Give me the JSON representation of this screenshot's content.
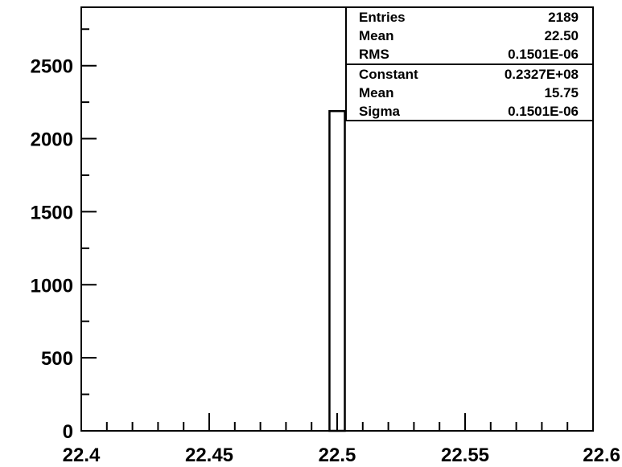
{
  "chart_data": {
    "type": "bar",
    "title": "",
    "xlabel": "",
    "ylabel": "",
    "xlim": [
      22.4,
      22.6
    ],
    "ylim": [
      0,
      2900
    ],
    "grid": false,
    "series": [
      {
        "bin_low": 22.497,
        "bin_high": 22.503,
        "value": 2189
      }
    ],
    "x_ticks": [
      {
        "value": 22.4,
        "label": "22.4"
      },
      {
        "value": 22.45,
        "label": "22.45"
      },
      {
        "value": 22.5,
        "label": "22.5"
      },
      {
        "value": 22.55,
        "label": "22.55"
      },
      {
        "value": 22.6,
        "label": "22.6"
      }
    ],
    "y_ticks": [
      {
        "value": 0,
        "label": "0"
      },
      {
        "value": 500,
        "label": "500"
      },
      {
        "value": 1000,
        "label": "1000"
      },
      {
        "value": 1500,
        "label": "1500"
      },
      {
        "value": 2000,
        "label": "2000"
      },
      {
        "value": 2500,
        "label": "2500"
      }
    ],
    "x_minor_step": 0.01,
    "y_minor_step": 250,
    "stats_box": {
      "position": "top-right",
      "sections": [
        [
          {
            "label": "Entries",
            "value": "2189"
          },
          {
            "label": "Mean",
            "value": "22.50"
          },
          {
            "label": "RMS",
            "value": "0.1501E-06"
          }
        ],
        [
          {
            "label": "Constant",
            "value": "0.2327E+08"
          },
          {
            "label": "Mean",
            "value": "15.75"
          },
          {
            "label": "Sigma",
            "value": "0.1501E-06"
          }
        ]
      ]
    }
  }
}
